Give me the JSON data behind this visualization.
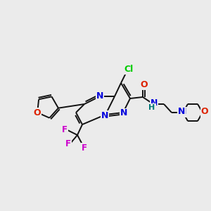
{
  "background_color": "#ebebeb",
  "bond_color": "#111111",
  "bond_width": 1.4,
  "figsize": [
    3.0,
    3.0
  ],
  "dpi": 100,
  "colors": {
    "Cl": "#00cc00",
    "O": "#dd2200",
    "N": "#0000dd",
    "H": "#007777",
    "F": "#cc00cc",
    "C": "#111111"
  }
}
